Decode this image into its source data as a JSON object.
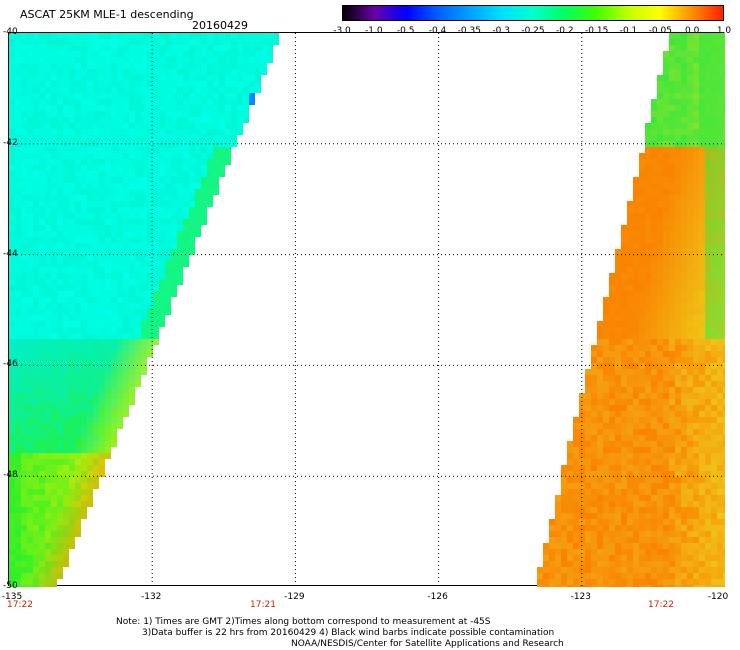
{
  "header": {
    "title": "ASCAT 25KM MLE-1 descending",
    "date": "20160429"
  },
  "colorbar": {
    "labels": [
      "-3.0",
      "-1.0",
      "-0.5",
      "-0.4",
      "-0.35",
      "-0.3",
      "-0.25",
      "-0.2",
      "-0.15",
      "-0.1",
      "-0.05",
      "0.0",
      "1.0"
    ],
    "colors": [
      "#000000",
      "#6a00a8",
      "#0000ff",
      "#0060ff",
      "#00a0ff",
      "#00e0ff",
      "#00ffcc",
      "#00ff60",
      "#40ff00",
      "#c0ff00",
      "#ffff00",
      "#ff9000",
      "#ff2000"
    ]
  },
  "map": {
    "lat_labels": [
      "-40",
      "-42",
      "-44",
      "-46",
      "-48",
      "-50"
    ],
    "lon_labels": [
      "-135",
      "-132",
      "-129",
      "-126",
      "-123",
      "-120"
    ],
    "time_labels": [
      "17:22",
      "17:21",
      "17:22"
    ],
    "swaths": [
      {
        "name": "west-swath",
        "color_scale": "cyan-to-green-to-yellow"
      },
      {
        "name": "east-swath",
        "color_scale": "green-to-yellow-to-orange"
      }
    ]
  },
  "notes": {
    "line1": "Note: 1) Times are GMT 2)Times along bottom correspond to measurement at -45S",
    "line2": "3)Data buffer is 22 hrs from 20160429 4) Black wind barbs indicate possible contamination",
    "line3": "NOAA/NESDIS/Center for Satellite Applications and Research"
  }
}
